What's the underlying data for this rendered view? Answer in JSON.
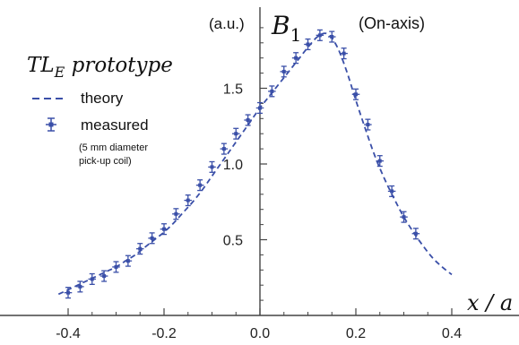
{
  "chart_data": {
    "type": "line",
    "title": "TL_E prototype",
    "title_main": "TL",
    "title_sub": "E",
    "title_rest": " prototype",
    "subtitle": "(On-axis)",
    "xlabel": "x / a",
    "ylabel_symbol": "B",
    "ylabel_sub": "1",
    "yunit": "(a.u.)",
    "xlim": [
      -0.42,
      0.42
    ],
    "ylim": [
      0.0,
      2.0
    ],
    "xticks": [
      -0.4,
      -0.2,
      0.0,
      0.2,
      0.4
    ],
    "xtick_labels": [
      "-0.4",
      "-0.2",
      "0.0",
      "0.2",
      "0.4"
    ],
    "yticks": [
      0.5,
      1.0,
      1.5
    ],
    "ytick_labels": [
      "0.5",
      "1.0",
      "1.5"
    ],
    "grid": false,
    "legend_position": "top-left",
    "colors": {
      "series": "#3a4fa8",
      "axis": "#444444"
    },
    "series": [
      {
        "name": "theory",
        "style": "dashed",
        "x": [
          -0.42,
          -0.4,
          -0.38,
          -0.36,
          -0.34,
          -0.32,
          -0.3,
          -0.28,
          -0.26,
          -0.24,
          -0.22,
          -0.2,
          -0.18,
          -0.16,
          -0.14,
          -0.12,
          -0.1,
          -0.08,
          -0.06,
          -0.04,
          -0.02,
          0.0,
          0.02,
          0.04,
          0.06,
          0.08,
          0.1,
          0.12,
          0.14,
          0.16,
          0.18,
          0.2,
          0.22,
          0.24,
          0.26,
          0.28,
          0.3,
          0.32,
          0.34,
          0.36,
          0.38,
          0.4
        ],
        "y": [
          0.14,
          0.17,
          0.2,
          0.23,
          0.26,
          0.29,
          0.32,
          0.36,
          0.4,
          0.45,
          0.5,
          0.55,
          0.61,
          0.68,
          0.75,
          0.83,
          0.92,
          1.01,
          1.1,
          1.19,
          1.28,
          1.37,
          1.45,
          1.53,
          1.61,
          1.69,
          1.77,
          1.84,
          1.86,
          1.78,
          1.62,
          1.42,
          1.23,
          1.05,
          0.9,
          0.77,
          0.65,
          0.55,
          0.46,
          0.38,
          0.32,
          0.27
        ]
      },
      {
        "name": "measured",
        "style": "points-with-errorbars",
        "x": [
          -0.4,
          -0.375,
          -0.35,
          -0.325,
          -0.3,
          -0.275,
          -0.25,
          -0.225,
          -0.2,
          -0.175,
          -0.15,
          -0.125,
          -0.1,
          -0.075,
          -0.05,
          -0.025,
          0.0,
          0.025,
          0.05,
          0.075,
          0.1,
          0.125,
          0.15,
          0.175,
          0.2,
          0.225,
          0.25,
          0.275,
          0.3,
          0.325
        ],
        "y": [
          0.15,
          0.19,
          0.24,
          0.26,
          0.32,
          0.36,
          0.44,
          0.51,
          0.57,
          0.67,
          0.76,
          0.86,
          0.98,
          1.1,
          1.2,
          1.29,
          1.37,
          1.48,
          1.61,
          1.7,
          1.79,
          1.85,
          1.84,
          1.73,
          1.46,
          1.26,
          1.02,
          0.82,
          0.65,
          0.54
        ],
        "xerr": 0.008,
        "yerr": 0.035
      }
    ],
    "legend": {
      "theory_label": "theory",
      "measured_label": "measured",
      "note_line1": "(5 mm diameter",
      "note_line2": "pick-up coil)"
    }
  }
}
